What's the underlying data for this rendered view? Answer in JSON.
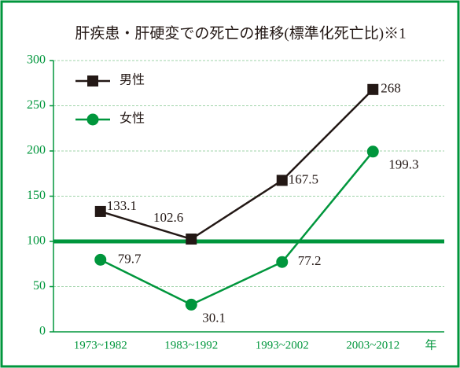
{
  "chart_data": {
    "type": "line",
    "title": "肝疾患・肝硬変での死亡の推移(標準化死亡比)※1",
    "x_label": "年",
    "categories": [
      "1973~1982",
      "1983~1992",
      "1993~2002",
      "2003~2012"
    ],
    "series": [
      {
        "name": "男性",
        "color": "#231815",
        "marker": "square",
        "values": [
          133.1,
          102.6,
          167.5,
          268
        ]
      },
      {
        "name": "女性",
        "color": "#00963c",
        "marker": "circle",
        "values": [
          79.7,
          30.1,
          77.2,
          199.3
        ]
      }
    ],
    "reference_line": 100,
    "ylim": [
      0,
      300
    ],
    "yticks": [
      0,
      50,
      100,
      150,
      200,
      250,
      300
    ],
    "grid": true,
    "legend": "upper left"
  }
}
